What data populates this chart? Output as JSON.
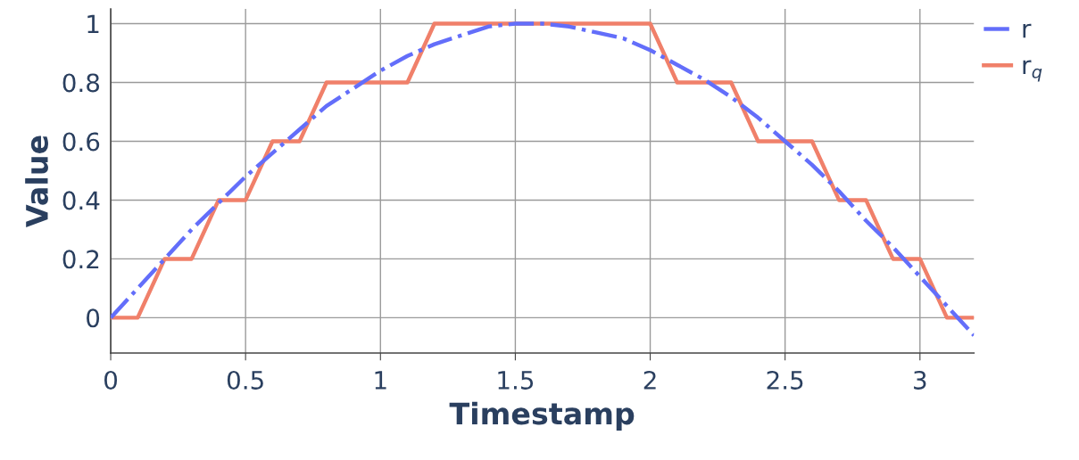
{
  "chart_data": {
    "type": "line",
    "xlabel": "Timestamp",
    "ylabel": "Value",
    "x": [
      0,
      0.1,
      0.2,
      0.3,
      0.4,
      0.5,
      0.6,
      0.7,
      0.8,
      0.9,
      1.0,
      1.1,
      1.2,
      1.3,
      1.4,
      1.5,
      1.6,
      1.7,
      1.8,
      1.9,
      2.0,
      2.1,
      2.2,
      2.3,
      2.4,
      2.5,
      2.6,
      2.7,
      2.8,
      2.9,
      3.0,
      3.1,
      3.2
    ],
    "series": [
      {
        "name": "r",
        "color": "#636efa",
        "line_style": "dashdot",
        "values": [
          0,
          0.1,
          0.2,
          0.3,
          0.39,
          0.48,
          0.56,
          0.64,
          0.72,
          0.78,
          0.84,
          0.89,
          0.93,
          0.96,
          0.99,
          1.0,
          1.0,
          0.99,
          0.97,
          0.95,
          0.91,
          0.86,
          0.81,
          0.75,
          0.68,
          0.6,
          0.52,
          0.43,
          0.33,
          0.24,
          0.14,
          0.04,
          -0.06
        ]
      },
      {
        "name": "r$_{q}$",
        "color": "#f0806a",
        "line_style": "solid",
        "values": [
          0,
          0,
          0.2,
          0.2,
          0.4,
          0.4,
          0.6,
          0.6,
          0.8,
          0.8,
          0.8,
          0.8,
          1,
          1,
          1,
          1,
          1,
          1,
          1,
          1,
          1,
          0.8,
          0.8,
          0.8,
          0.6,
          0.6,
          0.6,
          0.4,
          0.4,
          0.2,
          0.2,
          0,
          0
        ]
      }
    ],
    "xlim": [
      0,
      3.2
    ],
    "ylim": [
      -0.12,
      1.05
    ],
    "xticks": [
      0,
      0.5,
      1,
      1.5,
      2,
      2.5,
      3
    ],
    "yticks": [
      0,
      0.2,
      0.4,
      0.6,
      0.8,
      1
    ],
    "grid": true,
    "legend": "top right",
    "marker": "none"
  }
}
